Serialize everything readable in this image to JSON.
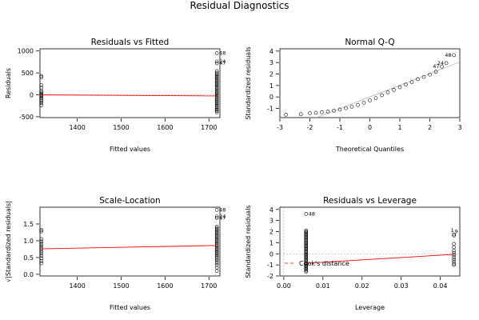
{
  "figure_title": "Residual Diagnostics",
  "chart_data": [
    {
      "id": "rvf",
      "type": "scatter",
      "title": "Residuals vs Fitted",
      "xlabel": "Fitted values",
      "ylabel": "Residuals",
      "xlim": [
        1315,
        1725
      ],
      "ylim": [
        -520,
        1050
      ],
      "xticks": [
        1400,
        1500,
        1600,
        1700
      ],
      "yticks": [
        -500,
        0,
        500,
        1000
      ],
      "clusters": [
        {
          "x": 1318,
          "y": [
            430,
            400,
            220,
            160,
            90,
            60,
            30,
            0,
            -20,
            -50,
            -80,
            -110,
            -150,
            -190,
            -240
          ]
        },
        {
          "x": 1718,
          "y": [
            950,
            760,
            720,
            540,
            500,
            470,
            440,
            410,
            380,
            350,
            320,
            290,
            260,
            230,
            200,
            170,
            140,
            110,
            80,
            50,
            20,
            -10,
            -40,
            -70,
            -100,
            -130,
            -160,
            -190,
            -220,
            -250,
            -280,
            -310,
            -340,
            -370,
            -400
          ]
        }
      ],
      "fit_line": [
        [
          1318,
          -2
        ],
        [
          1718,
          -25
        ]
      ],
      "ref_line": 0,
      "annotations": [
        {
          "x": 1718,
          "y": 950,
          "label": "48"
        },
        {
          "x": 1718,
          "y": 760,
          "label": "24"
        },
        {
          "x": 1718,
          "y": 720,
          "label": "47"
        }
      ]
    },
    {
      "id": "qq",
      "type": "scatter",
      "title": "Normal Q-Q",
      "xlabel": "Theoretical Quantiles",
      "ylabel": "Standardized residuals",
      "xlim": [
        -3,
        3
      ],
      "ylim": [
        -1.8,
        4.2
      ],
      "xticks": [
        -3,
        -2,
        -1,
        0,
        1,
        2,
        3
      ],
      "yticks": [
        -1,
        0,
        1,
        2,
        3,
        4
      ],
      "points": [
        [
          -2.8,
          -1.55
        ],
        [
          -2.3,
          -1.5
        ],
        [
          -2.0,
          -1.42
        ],
        [
          -1.8,
          -1.38
        ],
        [
          -1.6,
          -1.33
        ],
        [
          -1.4,
          -1.28
        ],
        [
          -1.2,
          -1.2
        ],
        [
          -1.0,
          -1.1
        ],
        [
          -0.8,
          -0.98
        ],
        [
          -0.6,
          -0.85
        ],
        [
          -0.4,
          -0.7
        ],
        [
          -0.2,
          -0.5
        ],
        [
          0.0,
          -0.3
        ],
        [
          0.2,
          -0.1
        ],
        [
          0.4,
          0.15
        ],
        [
          0.6,
          0.4
        ],
        [
          0.8,
          0.62
        ],
        [
          1.0,
          0.85
        ],
        [
          1.2,
          1.08
        ],
        [
          1.4,
          1.3
        ],
        [
          1.6,
          1.55
        ],
        [
          1.8,
          1.75
        ],
        [
          2.0,
          1.95
        ],
        [
          2.2,
          2.2
        ],
        [
          2.4,
          2.65
        ],
        [
          2.55,
          2.95
        ],
        [
          2.8,
          3.65
        ]
      ],
      "ref_line": [
        [
          -3,
          -3.05
        ],
        [
          3,
          3.05
        ]
      ],
      "annotations": [
        {
          "x": 2.8,
          "y": 3.65,
          "label": "48"
        },
        {
          "x": 2.55,
          "y": 2.95,
          "label": "24"
        },
        {
          "x": 2.4,
          "y": 2.65,
          "label": "47"
        }
      ]
    },
    {
      "id": "sl",
      "type": "scatter",
      "title": "Scale-Location",
      "xlabel": "Fitted values",
      "ylabel": "√|Standardized residuals|",
      "xlim": [
        1315,
        1725
      ],
      "ylim": [
        -0.05,
        2.0
      ],
      "xticks": [
        1400,
        1500,
        1600,
        1700
      ],
      "yticks": [
        0.0,
        0.5,
        1.0,
        1.5
      ],
      "clusters": [
        {
          "x": 1318,
          "y": [
            1.32,
            1.28,
            1.05,
            0.98,
            0.92,
            0.86,
            0.8,
            0.74,
            0.68,
            0.62,
            0.55,
            0.48,
            0.4,
            0.33
          ]
        },
        {
          "x": 1718,
          "y": [
            1.92,
            1.72,
            1.68,
            1.42,
            1.38,
            1.34,
            1.3,
            1.26,
            1.22,
            1.18,
            1.14,
            1.1,
            1.06,
            1.02,
            0.98,
            0.94,
            0.9,
            0.86,
            0.82,
            0.78,
            0.74,
            0.7,
            0.66,
            0.62,
            0.58,
            0.54,
            0.5,
            0.45,
            0.4,
            0.34,
            0.28,
            0.2,
            0.1
          ]
        }
      ],
      "fit_line": [
        [
          1318,
          0.76
        ],
        [
          1718,
          0.86
        ]
      ],
      "annotations": [
        {
          "x": 1718,
          "y": 1.92,
          "label": "48"
        },
        {
          "x": 1718,
          "y": 1.72,
          "label": "24"
        },
        {
          "x": 1718,
          "y": 1.68,
          "label": "47"
        }
      ]
    },
    {
      "id": "rvl",
      "type": "scatter",
      "title": "Residuals vs Leverage",
      "xlabel": "Leverage",
      "ylabel": "Standardized residuals",
      "xlim": [
        -0.001,
        0.045
      ],
      "ylim": [
        -2.0,
        4.2
      ],
      "xticks": [
        0.0,
        0.01,
        0.02,
        0.03,
        0.04
      ],
      "yticks": [
        -2,
        -1,
        0,
        1,
        2,
        3,
        4
      ],
      "clusters": [
        {
          "x": 0.0057,
          "y": [
            3.6,
            2.1,
            2.0,
            1.9,
            1.8,
            1.7,
            1.6,
            1.5,
            1.4,
            1.3,
            1.2,
            1.1,
            1.0,
            0.9,
            0.8,
            0.7,
            0.6,
            0.5,
            0.4,
            0.3,
            0.2,
            0.1,
            0.0,
            -0.1,
            -0.2,
            -0.3,
            -0.4,
            -0.5,
            -0.6,
            -0.7,
            -0.8,
            -0.9,
            -1.0,
            -1.1,
            -1.2,
            -1.3,
            -1.4,
            -1.5,
            -1.6
          ]
        },
        {
          "x": 0.0435,
          "y": [
            1.75,
            1.65,
            0.9,
            0.6,
            0.3,
            0.1,
            -0.1,
            -0.3,
            -0.5,
            -0.7,
            -0.9,
            -1.0
          ]
        }
      ],
      "fit_line": [
        [
          0.0057,
          -0.85
        ],
        [
          0.0435,
          -0.05
        ]
      ],
      "ref_h": 0,
      "ref_v": 0,
      "legend": {
        "label": "Cook's distance",
        "position": "bottom-left"
      },
      "annotations": [
        {
          "x": 0.0057,
          "y": 3.6,
          "label": "48"
        },
        {
          "x": 0.0435,
          "y": 1.75,
          "label": "1"
        },
        {
          "x": 0.0435,
          "y": 1.65,
          "label": "9"
        }
      ]
    }
  ]
}
